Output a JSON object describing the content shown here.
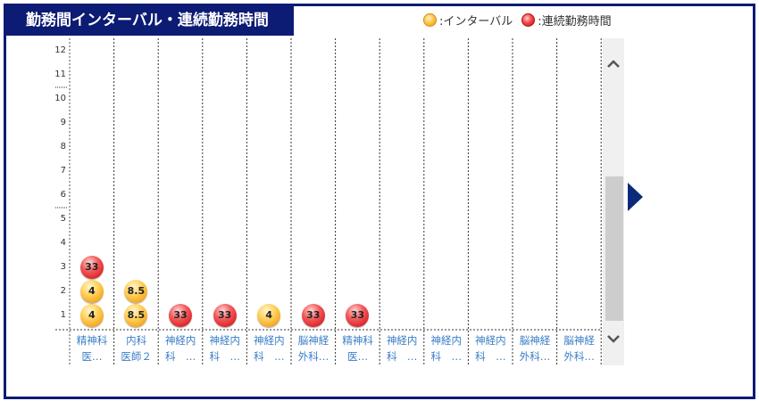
{
  "title": "勤務間インターバル・連続勤務時間",
  "legend": [
    {
      "label": ":インターバル",
      "color": "#f5a623"
    },
    {
      "label": ":連続勤務時間",
      "color": "#e3242b"
    }
  ],
  "colors": {
    "frame": "#0c1b73",
    "orange": "#f5a623",
    "red": "#e3242b",
    "label": "#3a7dc6",
    "next_arrow": "#0c2a7a"
  },
  "scroll": {
    "up_icon": "chevron-up-icon",
    "down_icon": "chevron-down-icon",
    "thumb_fraction_start": 0.42,
    "thumb_fraction_size": 0.44
  },
  "chart_data": {
    "type": "scatter",
    "yticks": [
      "1",
      "2",
      "3",
      "4",
      "5",
      "6",
      "7",
      "8",
      "9",
      "10",
      "11",
      "12"
    ],
    "columns": [
      {
        "line1": "精神科",
        "line2": "医…",
        "bubbles": [
          {
            "slot": 1,
            "value": "4",
            "kind": "orange"
          },
          {
            "slot": 2,
            "value": "4",
            "kind": "orange"
          },
          {
            "slot": 3,
            "value": "33",
            "kind": "red"
          }
        ]
      },
      {
        "line1": "内科",
        "line2": "医師２",
        "bubbles": [
          {
            "slot": 1,
            "value": "8.5",
            "kind": "orange"
          },
          {
            "slot": 2,
            "value": "8.5",
            "kind": "orange"
          }
        ]
      },
      {
        "line1": "神経内",
        "line2": "科　…",
        "bubbles": [
          {
            "slot": 1,
            "value": "33",
            "kind": "red"
          }
        ]
      },
      {
        "line1": "神経内",
        "line2": "科　…",
        "bubbles": [
          {
            "slot": 1,
            "value": "33",
            "kind": "red"
          }
        ]
      },
      {
        "line1": "神経内",
        "line2": "科　…",
        "bubbles": [
          {
            "slot": 1,
            "value": "4",
            "kind": "orange"
          }
        ]
      },
      {
        "line1": "脳神経",
        "line2": "外科…",
        "bubbles": [
          {
            "slot": 1,
            "value": "33",
            "kind": "red"
          }
        ]
      },
      {
        "line1": "精神科",
        "line2": "医…",
        "bubbles": [
          {
            "slot": 1,
            "value": "33",
            "kind": "red"
          }
        ]
      },
      {
        "line1": "神経内",
        "line2": "科　…",
        "bubbles": []
      },
      {
        "line1": "神経内",
        "line2": "科　…",
        "bubbles": []
      },
      {
        "line1": "神経内",
        "line2": "科　…",
        "bubbles": []
      },
      {
        "line1": "脳神経",
        "line2": "外科…",
        "bubbles": []
      },
      {
        "line1": "脳神経",
        "line2": "外科…",
        "bubbles": []
      }
    ]
  }
}
